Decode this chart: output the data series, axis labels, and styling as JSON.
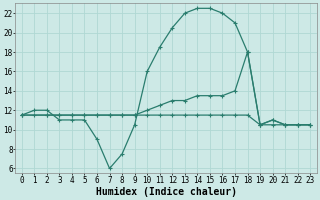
{
  "line1_x": [
    0,
    1,
    2,
    3,
    4,
    5,
    6,
    7,
    8,
    9,
    10,
    11,
    12,
    13,
    14,
    15,
    16,
    17,
    18,
    19,
    20,
    21,
    22,
    23
  ],
  "line1_y": [
    11.5,
    12.0,
    12.0,
    11.0,
    11.0,
    11.0,
    9.0,
    6.0,
    7.5,
    10.5,
    16.0,
    18.5,
    20.5,
    22.0,
    22.5,
    22.5,
    22.0,
    21.0,
    18.0,
    10.5,
    11.0,
    10.5,
    10.5,
    10.5
  ],
  "line2_x": [
    0,
    2,
    3,
    4,
    5,
    6,
    7,
    8,
    9,
    10,
    11,
    12,
    13,
    14,
    15,
    16,
    17,
    18,
    19,
    20,
    21,
    22,
    23
  ],
  "line2_y": [
    11.5,
    11.5,
    11.5,
    11.5,
    11.5,
    11.5,
    11.5,
    11.5,
    11.5,
    12.0,
    12.5,
    13.0,
    13.0,
    13.5,
    13.5,
    13.5,
    14.0,
    18.0,
    10.5,
    11.0,
    10.5,
    10.5,
    10.5
  ],
  "line3_x": [
    0,
    1,
    2,
    3,
    4,
    5,
    6,
    7,
    8,
    9,
    10,
    11,
    12,
    13,
    14,
    15,
    16,
    17,
    18,
    19,
    20,
    21,
    22,
    23
  ],
  "line3_y": [
    11.5,
    11.5,
    11.5,
    11.5,
    11.5,
    11.5,
    11.5,
    11.5,
    11.5,
    11.5,
    11.5,
    11.5,
    11.5,
    11.5,
    11.5,
    11.5,
    11.5,
    11.5,
    11.5,
    10.5,
    10.5,
    10.5,
    10.5,
    10.5
  ],
  "line_color": "#2a7d6e",
  "marker": "+",
  "markersize": 3,
  "linewidth": 0.9,
  "bg_color": "#cde9e6",
  "grid_color": "#b0d8d4",
  "xlabel": "Humidex (Indice chaleur)",
  "xlabel_fontsize": 7,
  "tick_fontsize": 5.5,
  "xlim": [
    -0.5,
    23.5
  ],
  "ylim": [
    5.5,
    23
  ],
  "yticks": [
    6,
    8,
    10,
    12,
    14,
    16,
    18,
    20,
    22
  ],
  "xticks": [
    0,
    1,
    2,
    3,
    4,
    5,
    6,
    7,
    8,
    9,
    10,
    11,
    12,
    13,
    14,
    15,
    16,
    17,
    18,
    19,
    20,
    21,
    22,
    23
  ]
}
